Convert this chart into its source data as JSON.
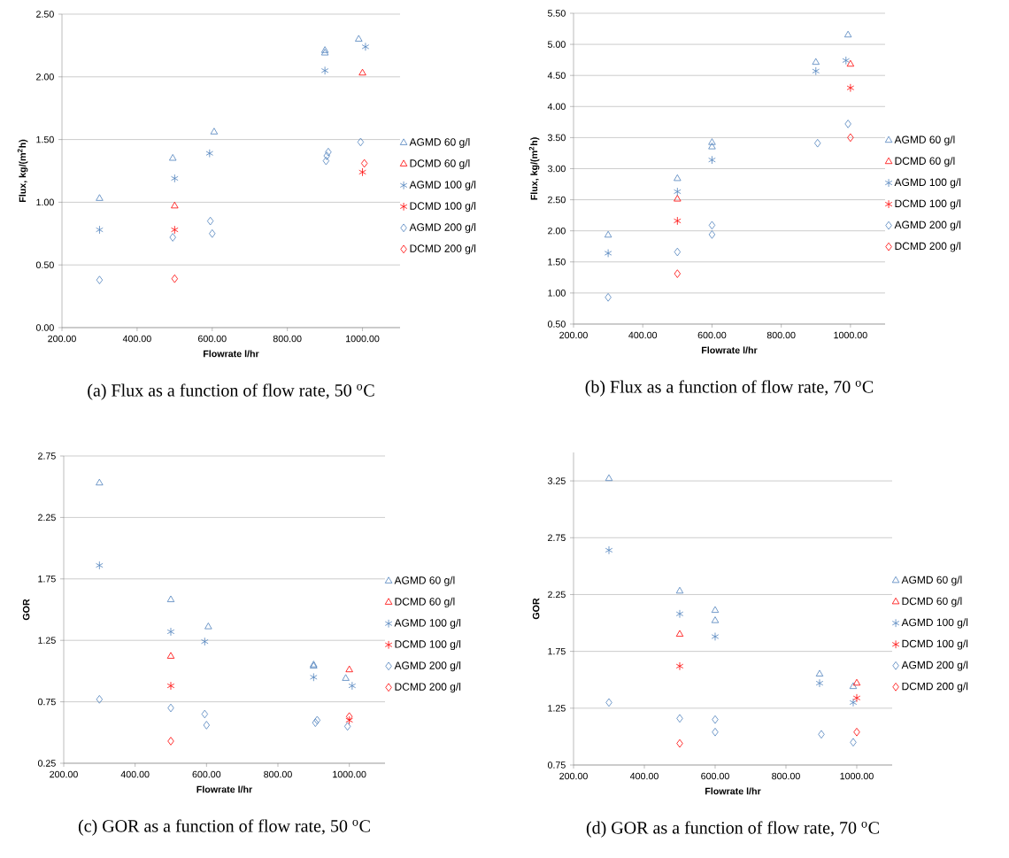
{
  "chart_data": [
    {
      "type": "scatter",
      "xlabel": "Flowrate l/hr",
      "ylabel": "Flux, kg/(m$^{2}$h)",
      "xlim": [
        200,
        1100
      ],
      "ylim": [
        0,
        2.5
      ],
      "xticks": [
        {
          "value": 200,
          "label": "200.00"
        },
        {
          "value": 400,
          "label": "400.00"
        },
        {
          "value": 600,
          "label": "600.00"
        },
        {
          "value": 800,
          "label": "800.00"
        },
        {
          "value": 1000,
          "label": "1000.00"
        }
      ],
      "yticks": [
        {
          "value": 0,
          "label": "0.00"
        },
        {
          "value": 0.5,
          "label": "0.50"
        },
        {
          "value": 1,
          "label": "1.00"
        },
        {
          "value": 1.5,
          "label": "1.50"
        },
        {
          "value": 2,
          "label": "2.00"
        },
        {
          "value": 2.5,
          "label": "2.50"
        }
      ],
      "grid": "y",
      "legend": "right",
      "annotations": [
        "(a) Flux as a function of flow rate, 50 $^{o}$C"
      ],
      "series": [
        {
          "name": "AGMD 60 g/l",
          "color": "#4f81bd",
          "marker": "triangle",
          "x": [
            300,
            495,
            605,
            900,
            900,
            990
          ],
          "values": [
            1.03,
            1.35,
            1.56,
            2.19,
            2.21,
            2.3
          ]
        },
        {
          "name": "DCMD 60 g/l",
          "color": "#ff0000",
          "marker": "triangle",
          "x": [
            500,
            1000
          ],
          "values": [
            0.97,
            2.03
          ]
        },
        {
          "name": "AGMD 100 g/l",
          "color": "#4f81bd",
          "marker": "cross",
          "x": [
            300,
            500,
            593,
            900,
            1008
          ],
          "values": [
            0.78,
            1.19,
            1.39,
            2.05,
            2.24
          ]
        },
        {
          "name": "DCMD 100 g/l",
          "color": "#ff0000",
          "marker": "cross",
          "x": [
            500,
            1000
          ],
          "values": [
            0.78,
            1.24
          ]
        },
        {
          "name": "AGMD 200 g/l",
          "color": "#4f81bd",
          "marker": "diamond",
          "x": [
            300,
            495,
            595,
            600,
            903,
            905,
            909,
            995
          ],
          "values": [
            0.38,
            0.72,
            0.85,
            0.75,
            1.33,
            1.37,
            1.4,
            1.48
          ]
        },
        {
          "name": "DCMD 200 g/l",
          "color": "#ff0000",
          "marker": "diamond",
          "x": [
            500,
            1005
          ],
          "values": [
            0.39,
            1.31
          ]
        }
      ]
    },
    {
      "type": "scatter",
      "xlabel": "Flowrate l/hr",
      "ylabel": "Flux, kg/(m$^{2}$h)",
      "xlim": [
        200,
        1100
      ],
      "ylim": [
        0.5,
        5.5
      ],
      "xticks": [
        {
          "value": 200,
          "label": "200.00"
        },
        {
          "value": 400,
          "label": "400.00"
        },
        {
          "value": 600,
          "label": "600.00"
        },
        {
          "value": 800,
          "label": "800.00"
        },
        {
          "value": 1000,
          "label": "1000.00"
        }
      ],
      "yticks": [
        {
          "value": 0.5,
          "label": "0.50"
        },
        {
          "value": 1,
          "label": "1.00"
        },
        {
          "value": 1.5,
          "label": "1.50"
        },
        {
          "value": 2,
          "label": "2.00"
        },
        {
          "value": 2.5,
          "label": "2.50"
        },
        {
          "value": 3,
          "label": "3.00"
        },
        {
          "value": 3.5,
          "label": "3.50"
        },
        {
          "value": 4,
          "label": "4.00"
        },
        {
          "value": 4.5,
          "label": "4.50"
        },
        {
          "value": 5,
          "label": "5.00"
        },
        {
          "value": 5.5,
          "label": "5.50"
        }
      ],
      "grid": "y",
      "legend": "right",
      "annotations": [
        "(b) Flux as a function of flow rate, 70 $^{o}$C"
      ],
      "series": [
        {
          "name": "AGMD 60 g/l",
          "color": "#4f81bd",
          "marker": "triangle",
          "x": [
            300,
            500,
            600,
            600,
            900,
            993
          ],
          "values": [
            1.93,
            2.84,
            3.42,
            3.35,
            4.71,
            5.15
          ]
        },
        {
          "name": "DCMD 60 g/l",
          "color": "#ff0000",
          "marker": "triangle",
          "x": [
            500,
            1000
          ],
          "values": [
            2.51,
            4.68
          ]
        },
        {
          "name": "AGMD 100 g/l",
          "color": "#4f81bd",
          "marker": "cross",
          "x": [
            300,
            500,
            600,
            900,
            987
          ],
          "values": [
            1.64,
            2.63,
            3.14,
            4.57,
            4.74
          ]
        },
        {
          "name": "DCMD 100 g/l",
          "color": "#ff0000",
          "marker": "cross",
          "x": [
            500,
            1000
          ],
          "values": [
            2.16,
            4.3
          ]
        },
        {
          "name": "AGMD 200 g/l",
          "color": "#4f81bd",
          "marker": "diamond",
          "x": [
            300,
            500,
            600,
            600,
            905,
            993
          ],
          "values": [
            0.93,
            1.66,
            2.09,
            1.94,
            3.41,
            3.72
          ]
        },
        {
          "name": "DCMD 200 g/l",
          "color": "#ff0000",
          "marker": "diamond",
          "x": [
            500,
            1000
          ],
          "values": [
            1.31,
            3.5
          ]
        }
      ]
    },
    {
      "type": "scatter",
      "xlabel": "Flowrate l/hr",
      "ylabel": "GOR",
      "xlim": [
        200,
        1100
      ],
      "ylim": [
        0.25,
        2.75
      ],
      "xticks": [
        {
          "value": 200,
          "label": "200.00"
        },
        {
          "value": 400,
          "label": "400.00"
        },
        {
          "value": 600,
          "label": "600.00"
        },
        {
          "value": 800,
          "label": "800.00"
        },
        {
          "value": 1000,
          "label": "1000.00"
        }
      ],
      "yticks": [
        0.25,
        0.75,
        1.25,
        1.75,
        2.25,
        2.75
      ],
      "grid": "y",
      "legend": "right",
      "annotations": [
        "(c) GOR as a function of flow rate, 50 $^{o}$C"
      ],
      "series": [
        {
          "name": "AGMD 60 g/l",
          "color": "#4f81bd",
          "marker": "triangle",
          "x": [
            300,
            500,
            605,
            900,
            900,
            990
          ],
          "values": [
            2.53,
            1.58,
            1.36,
            1.05,
            1.04,
            0.94
          ]
        },
        {
          "name": "DCMD 60 g/l",
          "color": "#ff0000",
          "marker": "triangle",
          "x": [
            500,
            1000
          ],
          "values": [
            1.12,
            1.01
          ]
        },
        {
          "name": "AGMD 100 g/l",
          "color": "#4f81bd",
          "marker": "cross",
          "x": [
            300,
            500,
            595,
            900,
            1008
          ],
          "values": [
            1.86,
            1.32,
            1.24,
            0.95,
            0.88
          ]
        },
        {
          "name": "DCMD 100 g/l",
          "color": "#ff0000",
          "marker": "cross",
          "x": [
            500,
            1000
          ],
          "values": [
            0.88,
            0.6
          ]
        },
        {
          "name": "AGMD 200 g/l",
          "color": "#4f81bd",
          "marker": "diamond",
          "x": [
            300,
            500,
            595,
            600,
            905,
            910,
            995
          ],
          "values": [
            0.77,
            0.7,
            0.65,
            0.56,
            0.58,
            0.6,
            0.55
          ]
        },
        {
          "name": "DCMD 200 g/l",
          "color": "#ff0000",
          "marker": "diamond",
          "x": [
            500,
            1000
          ],
          "values": [
            0.43,
            0.63
          ]
        }
      ]
    },
    {
      "type": "scatter",
      "xlabel": "Flowrate l/hr",
      "ylabel": "GOR",
      "xlim": [
        200,
        1100
      ],
      "ylim": [
        0.75,
        3.5
      ],
      "xticks": [
        {
          "value": 200,
          "label": "200.00"
        },
        {
          "value": 400,
          "label": "400.00"
        },
        {
          "value": 600,
          "label": "600.00"
        },
        {
          "value": 800,
          "label": "800.00"
        },
        {
          "value": 1000,
          "label": "1000.00"
        }
      ],
      "yticks": [
        0.75,
        1.25,
        1.75,
        2.25,
        2.75,
        3.25
      ],
      "grid": "y",
      "legend": "right",
      "annotations": [
        "(d) GOR as a function of flow rate, 70 $^{o}$C"
      ],
      "series": [
        {
          "name": "AGMD 60 g/l",
          "color": "#4f81bd",
          "marker": "triangle",
          "x": [
            300,
            500,
            600,
            600,
            895,
            990
          ],
          "values": [
            3.27,
            2.28,
            2.11,
            2.02,
            1.55,
            1.44
          ]
        },
        {
          "name": "DCMD 60 g/l",
          "color": "#ff0000",
          "marker": "triangle",
          "x": [
            500,
            1000
          ],
          "values": [
            1.9,
            1.47
          ]
        },
        {
          "name": "AGMD 100 g/l",
          "color": "#4f81bd",
          "marker": "cross",
          "x": [
            300,
            500,
            600,
            895,
            990
          ],
          "values": [
            2.64,
            2.08,
            1.88,
            1.47,
            1.3
          ]
        },
        {
          "name": "DCMD 100 g/l",
          "color": "#ff0000",
          "marker": "cross",
          "x": [
            500,
            1000
          ],
          "values": [
            1.62,
            1.34
          ]
        },
        {
          "name": "AGMD 200 g/l",
          "color": "#4f81bd",
          "marker": "diamond",
          "x": [
            300,
            500,
            600,
            600,
            900,
            990
          ],
          "values": [
            1.3,
            1.16,
            1.15,
            1.04,
            1.02,
            0.95
          ]
        },
        {
          "name": "DCMD 200 g/l",
          "color": "#ff0000",
          "marker": "diamond",
          "x": [
            500,
            1000
          ],
          "values": [
            0.94,
            1.04
          ]
        }
      ]
    }
  ]
}
